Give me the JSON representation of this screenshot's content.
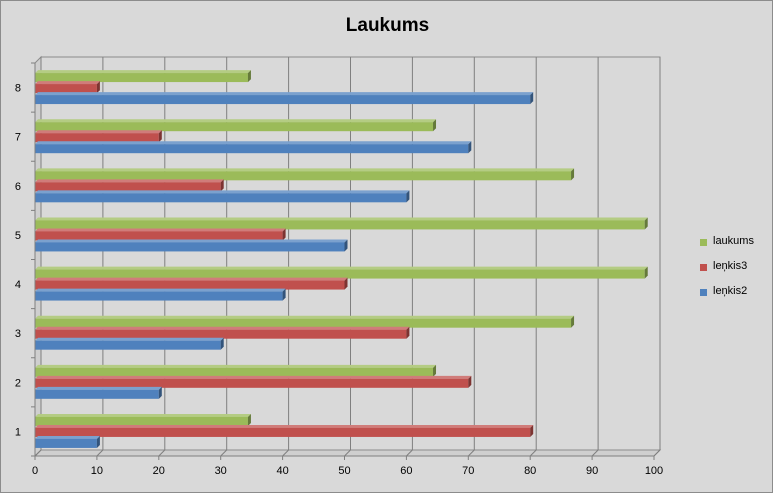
{
  "chart_data": {
    "type": "bar",
    "orientation": "horizontal",
    "title": "Laukums",
    "xlabel": "",
    "ylabel": "",
    "categories": [
      "1",
      "2",
      "3",
      "4",
      "5",
      "6",
      "7",
      "8"
    ],
    "series": [
      {
        "name": "leņkis2",
        "color": "#4f81bd",
        "values": [
          10,
          20,
          30,
          40,
          50,
          60,
          70,
          80
        ]
      },
      {
        "name": "leņkis3",
        "color": "#c0504d",
        "values": [
          80,
          70,
          60,
          50,
          40,
          30,
          20,
          10
        ]
      },
      {
        "name": "laukums",
        "color": "#9bbb59",
        "values": [
          34.4,
          64.3,
          86.6,
          98.5,
          98.5,
          86.6,
          64.3,
          34.4
        ]
      }
    ],
    "xlim": [
      0,
      100
    ],
    "xticks": [
      "0",
      "10",
      "20",
      "30",
      "40",
      "50",
      "60",
      "70",
      "80",
      "90",
      "100"
    ],
    "grid": true,
    "legend_position": "right"
  }
}
